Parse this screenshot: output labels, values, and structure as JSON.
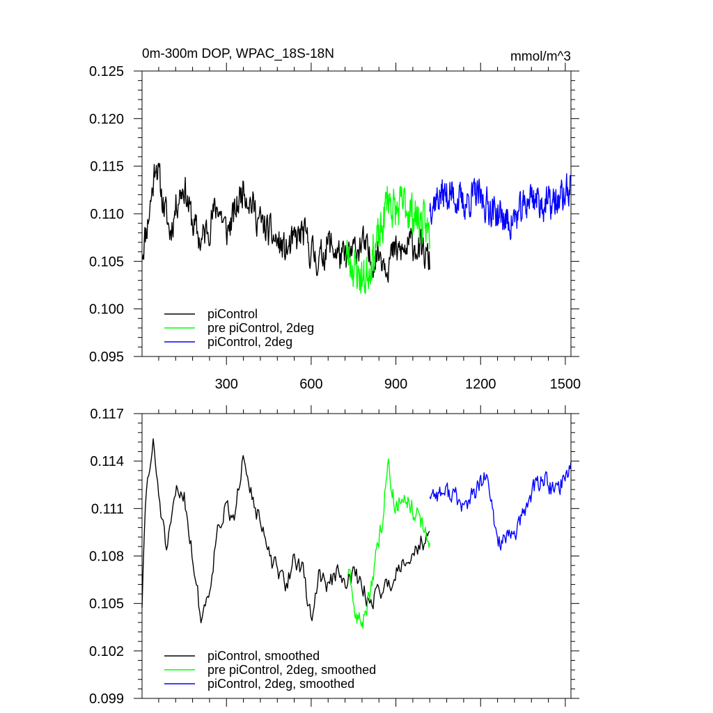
{
  "figure": {
    "title_left": "0m-300m DOP, WPAC_18S-18N",
    "title_right": "mmol/m^3"
  },
  "colors": {
    "piControl": "#000000",
    "pre_piControl_2deg": "#00ff00",
    "piControl_2deg": "#0000ff"
  },
  "chart_data": [
    {
      "type": "line",
      "id": "raw",
      "title": "0m-300m DOP, WPAC_18S-18N",
      "units": "mmol/m^3",
      "xlim": [
        1,
        1520
      ],
      "ylim": [
        0.095,
        0.125
      ],
      "xticks": [
        300,
        600,
        900,
        1200,
        1500
      ],
      "yticks": [
        0.095,
        0.1,
        0.105,
        0.11,
        0.115,
        0.12,
        0.125
      ],
      "ytick_labels": [
        "0.095",
        "0.100",
        "0.105",
        "0.110",
        "0.115",
        "0.120",
        "0.125"
      ],
      "legend": [
        "piControl",
        "pre piControl, 2deg",
        "piControl, 2deg"
      ],
      "legend_position": "lower-left",
      "series": [
        {
          "name": "piControl",
          "color_key": "piControl",
          "x_start": 1,
          "x_end": 1020,
          "anchors": [
            [
              1,
              0.106
            ],
            [
              20,
              0.109
            ],
            [
              40,
              0.113
            ],
            [
              50,
              0.116
            ],
            [
              70,
              0.112
            ],
            [
              100,
              0.108
            ],
            [
              130,
              0.112
            ],
            [
              150,
              0.113
            ],
            [
              180,
              0.109
            ],
            [
              210,
              0.107
            ],
            [
              240,
              0.109
            ],
            [
              270,
              0.111
            ],
            [
              300,
              0.108
            ],
            [
              330,
              0.11
            ],
            [
              360,
              0.113
            ],
            [
              390,
              0.111
            ],
            [
              420,
              0.109
            ],
            [
              450,
              0.108
            ],
            [
              480,
              0.107
            ],
            [
              510,
              0.106
            ],
            [
              540,
              0.107
            ],
            [
              570,
              0.108
            ],
            [
              600,
              0.106
            ],
            [
              630,
              0.105
            ],
            [
              660,
              0.107
            ],
            [
              690,
              0.106
            ],
            [
              720,
              0.105
            ],
            [
              750,
              0.106
            ],
            [
              780,
              0.107
            ],
            [
              810,
              0.105
            ],
            [
              840,
              0.106
            ],
            [
              870,
              0.105
            ],
            [
              900,
              0.106
            ],
            [
              930,
              0.106
            ],
            [
              960,
              0.107
            ],
            [
              990,
              0.106
            ],
            [
              1020,
              0.105
            ]
          ],
          "noise": 0.0028,
          "seed": 11,
          "samples": 520
        },
        {
          "name": "pre piControl, 2deg",
          "color_key": "pre_piControl_2deg",
          "x_start": 720,
          "x_end": 1020,
          "anchors": [
            [
              720,
              0.106
            ],
            [
              760,
              0.104
            ],
            [
              790,
              0.103
            ],
            [
              820,
              0.106
            ],
            [
              850,
              0.108
            ],
            [
              870,
              0.112
            ],
            [
              900,
              0.11
            ],
            [
              930,
              0.111
            ],
            [
              960,
              0.11
            ],
            [
              990,
              0.109
            ],
            [
              1020,
              0.108
            ]
          ],
          "noise": 0.0035,
          "seed": 23,
          "samples": 200
        },
        {
          "name": "piControl, 2deg",
          "color_key": "piControl_2deg",
          "x_start": 1020,
          "x_end": 1520,
          "anchors": [
            [
              1020,
              0.111
            ],
            [
              1060,
              0.112
            ],
            [
              1100,
              0.112
            ],
            [
              1140,
              0.111
            ],
            [
              1180,
              0.112
            ],
            [
              1220,
              0.111
            ],
            [
              1260,
              0.11
            ],
            [
              1300,
              0.109
            ],
            [
              1340,
              0.11
            ],
            [
              1380,
              0.112
            ],
            [
              1420,
              0.111
            ],
            [
              1460,
              0.111
            ],
            [
              1500,
              0.112
            ],
            [
              1520,
              0.113
            ]
          ],
          "noise": 0.0028,
          "seed": 37,
          "samples": 330
        }
      ]
    },
    {
      "type": "line",
      "id": "smoothed",
      "xlim": [
        1,
        1520
      ],
      "ylim": [
        0.099,
        0.117
      ],
      "xticks": [
        300,
        600,
        900,
        1200,
        1500
      ],
      "yticks": [
        0.099,
        0.102,
        0.105,
        0.108,
        0.111,
        0.114,
        0.117
      ],
      "ytick_labels": [
        "0.099",
        "0.102",
        "0.105",
        "0.108",
        "0.111",
        "0.114",
        "0.117"
      ],
      "legend": [
        "piControl, smoothed",
        "pre piControl, 2deg, smoothed",
        "piControl, 2deg, smoothed"
      ],
      "legend_position": "lower-left",
      "series": [
        {
          "name": "piControl, smoothed",
          "color_key": "piControl",
          "x_start": 1,
          "x_end": 1020,
          "anchors": [
            [
              1,
              0.105
            ],
            [
              15,
              0.112
            ],
            [
              40,
              0.115
            ],
            [
              60,
              0.112
            ],
            [
              90,
              0.108
            ],
            [
              120,
              0.112
            ],
            [
              150,
              0.112
            ],
            [
              180,
              0.108
            ],
            [
              210,
              0.104
            ],
            [
              240,
              0.106
            ],
            [
              270,
              0.11
            ],
            [
              300,
              0.111
            ],
            [
              330,
              0.11
            ],
            [
              360,
              0.115
            ],
            [
              390,
              0.112
            ],
            [
              420,
              0.11
            ],
            [
              450,
              0.108
            ],
            [
              480,
              0.107
            ],
            [
              510,
              0.106
            ],
            [
              540,
              0.108
            ],
            [
              570,
              0.107
            ],
            [
              600,
              0.104
            ],
            [
              630,
              0.107
            ],
            [
              660,
              0.106
            ],
            [
              690,
              0.107
            ],
            [
              720,
              0.106
            ],
            [
              750,
              0.107
            ],
            [
              780,
              0.106
            ],
            [
              810,
              0.105
            ],
            [
              840,
              0.106
            ],
            [
              870,
              0.106
            ],
            [
              900,
              0.107
            ],
            [
              930,
              0.108
            ],
            [
              960,
              0.108
            ],
            [
              990,
              0.109
            ],
            [
              1020,
              0.109
            ]
          ],
          "noise": 0.001,
          "seed": 51,
          "samples": 260
        },
        {
          "name": "pre piControl, 2deg, smoothed",
          "color_key": "pre_piControl_2deg",
          "x_start": 730,
          "x_end": 1020,
          "anchors": [
            [
              730,
              0.107
            ],
            [
              760,
              0.104
            ],
            [
              790,
              0.104
            ],
            [
              820,
              0.107
            ],
            [
              850,
              0.11
            ],
            [
              870,
              0.114
            ],
            [
              900,
              0.111
            ],
            [
              930,
              0.112
            ],
            [
              960,
              0.111
            ],
            [
              990,
              0.11
            ],
            [
              1020,
              0.109
            ]
          ],
          "noise": 0.001,
          "seed": 63,
          "samples": 110
        },
        {
          "name": "piControl, 2deg, smoothed",
          "color_key": "piControl_2deg",
          "x_start": 1020,
          "x_end": 1520,
          "anchors": [
            [
              1020,
              0.112
            ],
            [
              1060,
              0.112
            ],
            [
              1100,
              0.112
            ],
            [
              1140,
              0.111
            ],
            [
              1180,
              0.112
            ],
            [
              1220,
              0.113
            ],
            [
              1260,
              0.109
            ],
            [
              1300,
              0.109
            ],
            [
              1340,
              0.11
            ],
            [
              1380,
              0.112
            ],
            [
              1420,
              0.113
            ],
            [
              1460,
              0.112
            ],
            [
              1500,
              0.113
            ],
            [
              1520,
              0.114
            ]
          ],
          "noise": 0.001,
          "seed": 77,
          "samples": 170
        }
      ]
    }
  ]
}
